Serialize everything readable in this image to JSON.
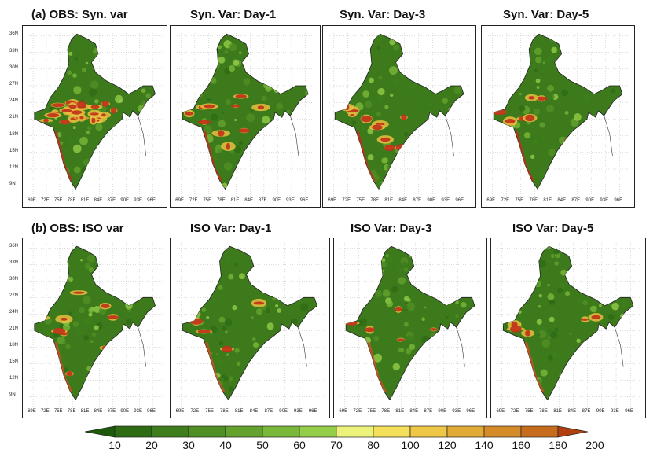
{
  "panels": [
    {
      "title": "(a) OBS: Syn. var",
      "id": "obs-syn",
      "row": 0,
      "col": 0
    },
    {
      "title": "Syn. Var: Day-1",
      "id": "syn-day1",
      "row": 0,
      "col": 1
    },
    {
      "title": "Syn. Var: Day-3",
      "id": "syn-day3",
      "row": 0,
      "col": 2
    },
    {
      "title": "Syn. Var: Day-5",
      "id": "syn-day5",
      "row": 0,
      "col": 3
    },
    {
      "title": "(b) OBS: ISO var",
      "id": "obs-iso",
      "row": 1,
      "col": 0
    },
    {
      "title": "ISO Var: Day-1",
      "id": "iso-day1",
      "row": 1,
      "col": 1
    },
    {
      "title": "ISO Var: Day-3",
      "id": "iso-day3",
      "row": 1,
      "col": 2
    },
    {
      "title": "ISO Var: Day-5",
      "id": "iso-day5",
      "row": 1,
      "col": 3
    }
  ],
  "lat_labels": [
    "36N",
    "33N",
    "30N",
    "27N",
    "24N",
    "21N",
    "18N",
    "15N",
    "12N",
    "9N"
  ],
  "lon_labels": [
    "69E",
    "72E",
    "75E",
    "78E",
    "81E",
    "84E",
    "87E",
    "90E",
    "93E",
    "96E"
  ],
  "colorbar": {
    "labels": [
      "10",
      "20",
      "30",
      "40",
      "50",
      "60",
      "70",
      "80",
      "100",
      "120",
      "140",
      "160",
      "180",
      "200"
    ],
    "colors": [
      "#1e5a0c",
      "#2e6c14",
      "#3e7e1c",
      "#508f24",
      "#64a22e",
      "#7ab83a",
      "#94cd48",
      "#ecf27a",
      "#f3df5a",
      "#eec746",
      "#e2ab36",
      "#d58c28",
      "#c76c1c",
      "#b04010"
    ]
  },
  "colors": {
    "land_base": "#3c7a1c",
    "hot": "#c0301a",
    "warm": "#e8c040"
  }
}
